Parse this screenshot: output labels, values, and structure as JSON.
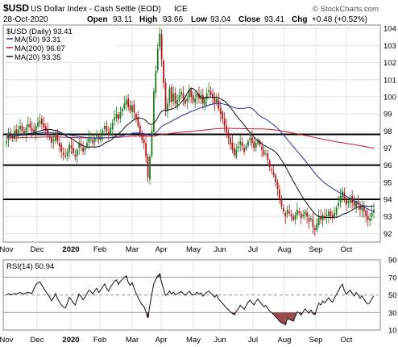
{
  "header": {
    "symbol": "$USD",
    "name": "US Dollar Index - Cash Settle (EOD)",
    "exchange": "ICE",
    "date": "28-Oct-2020",
    "open_label": "Open",
    "open": "93.11",
    "high_label": "High",
    "high": "93.66",
    "low_label": "Low",
    "low": "93.04",
    "close_label": "Close",
    "close": "93.41",
    "chg_label": "Chg",
    "chg": "+0.48 (+0.52%)",
    "brand": "© StockCharts.com"
  },
  "legend": {
    "main": "$USD (Daily) 93.41",
    "ma50": "MA(50) 93.31",
    "ma200": "MA(200) 96.67",
    "ma20": "MA(20) 93.35"
  },
  "rsi_legend": "RSI(14) 50.94",
  "colors": {
    "up": "#1f7a1f",
    "down": "#b0181a",
    "ma50": "#23329a",
    "ma200": "#c0182a",
    "ma20": "#111111",
    "grid": "#d6d6d6",
    "rsi_line": "#111111",
    "rsi_ob": "#5a7a5a",
    "rsi_os": "#9a4a4a"
  },
  "chart_data": [
    {
      "type": "candlestick",
      "title": "$USD US Dollar Index - Cash Settle (EOD) ICE",
      "ylim": [
        91.5,
        104.2
      ],
      "y_ticks": [
        92,
        93,
        94,
        95,
        96,
        97,
        98,
        99,
        100,
        101,
        102,
        103,
        104
      ],
      "x_ticks": [
        "Nov",
        "Dec",
        "2020",
        "Feb",
        "Mar",
        "Apr",
        "May",
        "Jun",
        "Jul",
        "Aug",
        "Sep",
        "Oct"
      ],
      "horizontal_lines": [
        97.8,
        96.0,
        94.0
      ],
      "close": [
        97.4,
        97.9,
        97.7,
        97.6,
        98.0,
        97.8,
        98.1,
        98.3,
        98.0,
        97.8,
        98.2,
        98.4,
        98.2,
        98.0,
        97.9,
        98.3,
        98.5,
        98.6,
        98.4,
        98.2,
        98.0,
        97.8,
        97.6,
        97.3,
        97.5,
        97.8,
        97.4,
        97.1,
        96.8,
        96.6,
        96.5,
        96.8,
        97.2,
        97.0,
        96.7,
        96.5,
        96.9,
        97.3,
        97.1,
        96.8,
        97.0,
        97.3,
        97.6,
        97.5,
        97.3,
        97.6,
        97.8,
        97.5,
        97.7,
        98.0,
        98.3,
        98.0,
        97.8,
        98.2,
        98.5,
        98.8,
        99.0,
        98.7,
        99.1,
        99.3,
        99.6,
        99.8,
        99.4,
        99.2,
        99.5,
        99.1,
        98.7,
        98.3,
        97.9,
        97.5,
        97.3,
        96.5,
        95.3,
        96.5,
        98.0,
        100.3,
        101.5,
        102.8,
        103.7,
        102.2,
        100.8,
        99.2,
        99.6,
        100.5,
        99.7,
        100.2,
        99.6,
        99.8,
        100.1,
        100.3,
        99.9,
        99.6,
        99.9,
        100.4,
        100.0,
        99.7,
        99.9,
        100.2,
        99.9,
        100.1,
        99.6,
        99.9,
        100.2,
        100.4,
        100.1,
        99.9,
        99.6,
        99.9,
        99.3,
        99.0,
        98.7,
        98.3,
        97.9,
        97.6,
        97.2,
        96.9,
        96.6,
        96.9,
        97.1,
        97.4,
        97.1,
        96.8,
        97.1,
        97.4,
        97.6,
        97.3,
        97.0,
        97.3,
        97.5,
        97.2,
        96.9,
        96.6,
        96.7,
        96.3,
        95.9,
        95.7,
        95.4,
        95.0,
        94.6,
        94.0,
        93.6,
        93.3,
        93.0,
        93.4,
        93.2,
        93.0,
        92.8,
        93.1,
        93.4,
        93.2,
        92.9,
        93.1,
        93.3,
        93.0,
        92.7,
        92.9,
        92.4,
        92.2,
        92.6,
        93.0,
        92.8,
        93.1,
        92.9,
        93.1,
        93.3,
        93.0,
        92.9,
        93.2,
        93.5,
        93.8,
        94.2,
        94.5,
        94.0,
        93.7,
        93.9,
        94.1,
        93.8,
        93.6,
        93.9,
        93.7,
        93.4,
        93.6,
        93.3,
        93.0,
        92.8,
        92.9,
        93.2,
        93.4
      ]
    },
    {
      "type": "line",
      "title": "RSI(14) 50.94",
      "ylim": [
        10,
        90
      ],
      "y_ticks": [
        10,
        30,
        50,
        70,
        90
      ],
      "horizontal_lines": [
        70,
        50,
        30
      ],
      "x_ticks": [
        "Nov",
        "Dec",
        "2020",
        "Feb",
        "Mar",
        "Apr",
        "May",
        "Jun",
        "Jul",
        "Aug",
        "Sep",
        "Oct"
      ]
    }
  ]
}
